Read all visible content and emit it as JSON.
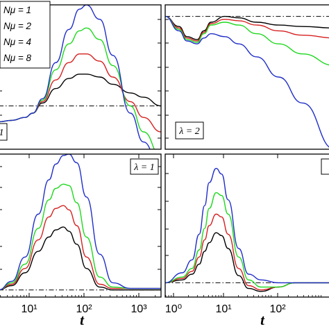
{
  "x_axis_title": "t",
  "legend": [
    {
      "label": "Nμ = 1",
      "color": "#000000"
    },
    {
      "label": "Nμ = 2",
      "color": "#d62020"
    },
    {
      "label": "Nμ = 4",
      "color": "#1ed81e"
    },
    {
      "label": "Nμ = 8",
      "color": "#1f2ec8"
    }
  ],
  "reference_line_style": "dash-dot",
  "chart_data": [
    {
      "type": "line",
      "panel": "top-left",
      "x_scale": "log",
      "xlim": [
        1,
        5000
      ],
      "ylim": [
        0,
        1
      ],
      "x_tick_labels": [],
      "label": "1",
      "reference_y": 0.3,
      "series": [
        {
          "name": "Nμ = 1",
          "x": [
            1,
            2,
            4,
            6,
            10,
            20,
            40,
            70,
            100,
            200,
            400,
            1000,
            2000,
            5000
          ],
          "y": [
            0.19,
            0.2,
            0.22,
            0.25,
            0.32,
            0.42,
            0.49,
            0.52,
            0.52,
            0.5,
            0.45,
            0.39,
            0.36,
            0.3
          ]
        },
        {
          "name": "Nμ = 2",
          "x": [
            1,
            2,
            4,
            6,
            10,
            20,
            40,
            70,
            100,
            200,
            400,
            1000,
            2000,
            5000
          ],
          "y": [
            0.19,
            0.2,
            0.22,
            0.25,
            0.33,
            0.48,
            0.6,
            0.66,
            0.66,
            0.61,
            0.5,
            0.33,
            0.22,
            0.12
          ]
        },
        {
          "name": "Nμ = 4",
          "x": [
            1,
            2,
            4,
            6,
            10,
            20,
            40,
            70,
            100,
            200,
            400,
            1000,
            2000,
            5000
          ],
          "y": [
            0.19,
            0.2,
            0.22,
            0.25,
            0.34,
            0.55,
            0.73,
            0.82,
            0.84,
            0.76,
            0.58,
            0.3,
            0.12,
            -0.05
          ]
        },
        {
          "name": "Nμ = 8",
          "x": [
            1,
            2,
            4,
            6,
            10,
            20,
            40,
            70,
            100,
            200,
            400,
            1000,
            2000,
            5000
          ],
          "y": [
            0.19,
            0.2,
            0.22,
            0.25,
            0.35,
            0.6,
            0.83,
            0.97,
            1.0,
            0.9,
            0.65,
            0.25,
            0.05,
            -0.15
          ]
        }
      ]
    },
    {
      "type": "line",
      "panel": "top-right",
      "x_scale": "log",
      "xlim": [
        1,
        5000
      ],
      "ylim": [
        0,
        1
      ],
      "x_tick_labels": [],
      "label": "λ = 2",
      "reference_y": 0.92,
      "series": [
        {
          "name": "Nμ = 1",
          "x": [
            1,
            2,
            3,
            5,
            7,
            10,
            20,
            40,
            100,
            300,
            1000,
            5000
          ],
          "y": [
            0.92,
            0.85,
            0.78,
            0.76,
            0.82,
            0.88,
            0.92,
            0.91,
            0.88,
            0.86,
            0.85,
            0.84
          ]
        },
        {
          "name": "Nμ = 2",
          "x": [
            1,
            2,
            3,
            5,
            7,
            10,
            20,
            40,
            100,
            300,
            1000,
            5000
          ],
          "y": [
            0.92,
            0.84,
            0.77,
            0.75,
            0.81,
            0.87,
            0.9,
            0.89,
            0.86,
            0.82,
            0.79,
            0.77
          ]
        },
        {
          "name": "Nμ = 4",
          "x": [
            1,
            2,
            3,
            5,
            7,
            10,
            20,
            40,
            100,
            300,
            1000,
            5000
          ],
          "y": [
            0.92,
            0.83,
            0.76,
            0.74,
            0.8,
            0.86,
            0.88,
            0.86,
            0.8,
            0.73,
            0.66,
            0.58
          ]
        },
        {
          "name": "Nμ = 8",
          "x": [
            1,
            2,
            3,
            5,
            7,
            10,
            20,
            40,
            100,
            300,
            1000,
            5000
          ],
          "y": [
            0.92,
            0.82,
            0.75,
            0.73,
            0.77,
            0.8,
            0.78,
            0.73,
            0.64,
            0.5,
            0.32,
            0.0
          ]
        }
      ]
    },
    {
      "type": "line",
      "panel": "bottom-left",
      "x_scale": "log",
      "xlim": [
        0.5,
        2500
      ],
      "ylim": [
        0,
        1
      ],
      "x_tick_labels": [
        "10¹",
        "10²",
        "10³"
      ],
      "label": "λ = 1",
      "reference_y": 0.05,
      "series": [
        {
          "name": "Nμ = 1",
          "x": [
            0.5,
            1,
            2,
            4,
            7,
            10,
            15,
            20,
            30,
            50,
            100,
            200,
            500,
            1000,
            2500
          ],
          "y": [
            0.05,
            0.08,
            0.17,
            0.32,
            0.42,
            0.47,
            0.49,
            0.46,
            0.37,
            0.2,
            0.07,
            0.05,
            0.05,
            0.05,
            0.05
          ]
        },
        {
          "name": "Nμ = 2",
          "x": [
            0.5,
            1,
            2,
            4,
            7,
            10,
            15,
            20,
            30,
            50,
            100,
            200,
            500,
            1000,
            2500
          ],
          "y": [
            0.05,
            0.09,
            0.2,
            0.4,
            0.56,
            0.62,
            0.64,
            0.61,
            0.5,
            0.28,
            0.09,
            0.06,
            0.06,
            0.06,
            0.06
          ]
        },
        {
          "name": "Nμ = 4",
          "x": [
            0.5,
            1,
            2,
            4,
            7,
            10,
            15,
            20,
            30,
            50,
            100,
            200,
            500,
            1000,
            2500
          ],
          "y": [
            0.05,
            0.1,
            0.23,
            0.48,
            0.68,
            0.76,
            0.79,
            0.78,
            0.66,
            0.42,
            0.14,
            0.07,
            0.06,
            0.06,
            0.06
          ]
        },
        {
          "name": "Nμ = 8",
          "x": [
            0.5,
            1,
            2,
            4,
            7,
            10,
            15,
            20,
            30,
            50,
            100,
            200,
            500,
            1000,
            2500
          ],
          "y": [
            0.05,
            0.11,
            0.28,
            0.58,
            0.82,
            0.93,
            0.99,
            1.0,
            0.94,
            0.7,
            0.3,
            0.1,
            0.06,
            0.06,
            0.06
          ]
        }
      ]
    },
    {
      "type": "line",
      "panel": "bottom-right",
      "x_scale": "log",
      "xlim": [
        1,
        1000
      ],
      "ylim": [
        0,
        1
      ],
      "x_tick_labels": [
        "10⁰",
        "10¹",
        "10²"
      ],
      "label": "",
      "reference_y": 0.1,
      "series": [
        {
          "name": "Nμ = 1",
          "x": [
            1,
            2,
            3,
            4,
            5,
            6,
            8,
            10,
            13,
            20,
            30,
            50,
            100,
            200,
            400,
            1000
          ],
          "y": [
            0.1,
            0.12,
            0.16,
            0.23,
            0.32,
            0.38,
            0.45,
            0.43,
            0.34,
            0.15,
            0.06,
            0.04,
            0.07,
            0.1,
            0.1,
            0.1
          ]
        },
        {
          "name": "Nμ = 2",
          "x": [
            1,
            2,
            3,
            4,
            5,
            6,
            8,
            10,
            13,
            20,
            30,
            50,
            100,
            200,
            400,
            1000
          ],
          "y": [
            0.1,
            0.13,
            0.18,
            0.28,
            0.4,
            0.5,
            0.58,
            0.56,
            0.44,
            0.2,
            0.08,
            0.05,
            0.07,
            0.1,
            0.1,
            0.1
          ]
        },
        {
          "name": "Nμ = 4",
          "x": [
            1,
            2,
            3,
            4,
            5,
            6,
            8,
            10,
            13,
            20,
            30,
            50,
            100,
            200,
            400,
            1000
          ],
          "y": [
            0.1,
            0.14,
            0.2,
            0.33,
            0.48,
            0.62,
            0.73,
            0.71,
            0.58,
            0.28,
            0.12,
            0.07,
            0.07,
            0.1,
            0.1,
            0.1
          ]
        },
        {
          "name": "Nμ = 8",
          "x": [
            1,
            2,
            3,
            4,
            5,
            6,
            8,
            10,
            13,
            20,
            30,
            50,
            100,
            200,
            400,
            1000
          ],
          "y": [
            0.1,
            0.17,
            0.26,
            0.44,
            0.64,
            0.8,
            0.9,
            0.86,
            0.68,
            0.34,
            0.16,
            0.12,
            0.1,
            0.1,
            0.1,
            0.1
          ]
        }
      ]
    }
  ]
}
